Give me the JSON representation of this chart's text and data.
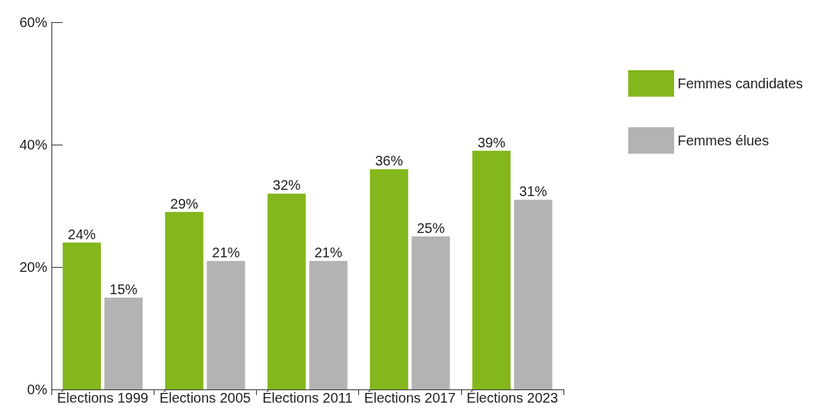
{
  "chart_data": {
    "type": "bar",
    "categories": [
      "Élections 1999",
      "Élections 2005",
      "Élections 2011",
      "Élections 2017",
      "Élections 2023"
    ],
    "series": [
      {
        "name": "Femmes candidates",
        "color": "#84b71b",
        "values": [
          24,
          29,
          32,
          36,
          39
        ],
        "value_labels": [
          "24%",
          "29%",
          "32%",
          "36%",
          "39%"
        ]
      },
      {
        "name": "Femmes élues",
        "color": "#b3b3b4",
        "values": [
          15,
          21,
          21,
          25,
          31
        ],
        "value_labels": [
          "15%",
          "21%",
          "21%",
          "25%",
          "31%"
        ]
      }
    ],
    "ylim": [
      0,
      60
    ],
    "yticks": [
      {
        "value": 0,
        "label": "0%"
      },
      {
        "value": 20,
        "label": "20%"
      },
      {
        "value": 40,
        "label": "40%"
      },
      {
        "value": 60,
        "label": "60%"
      }
    ],
    "grid": false,
    "legend": "top right"
  }
}
